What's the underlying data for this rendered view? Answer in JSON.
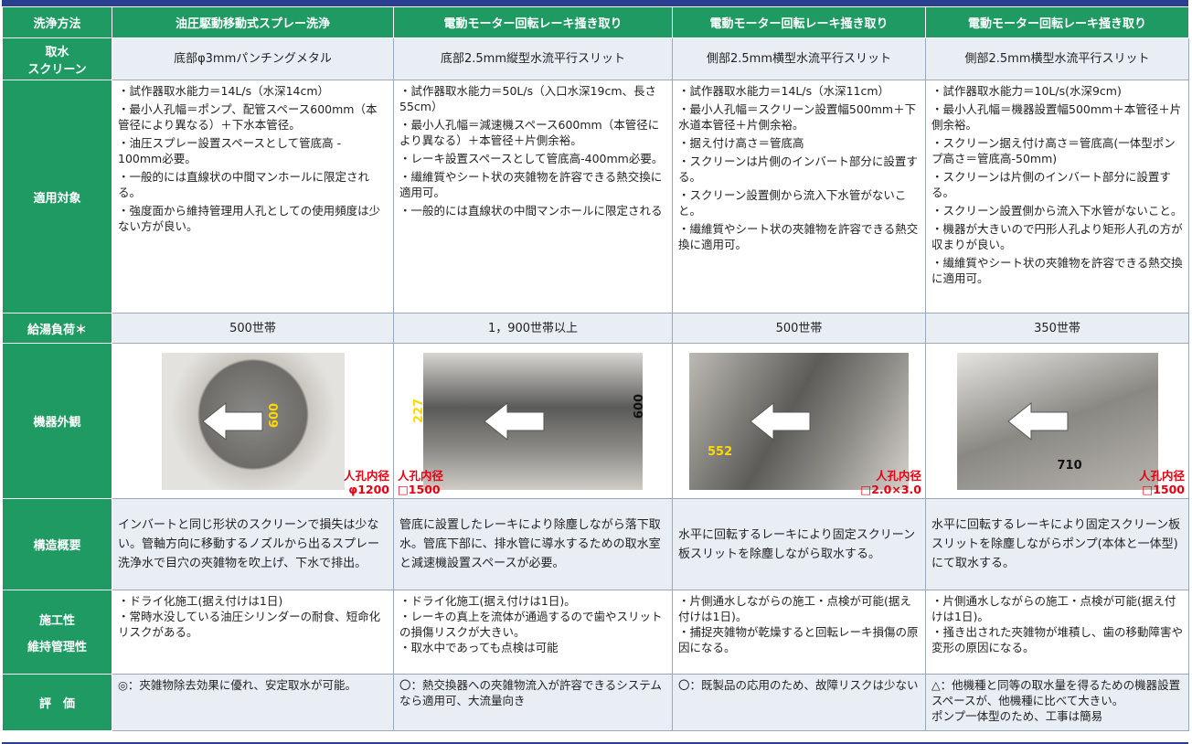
{
  "header": [
    "洗浄方法",
    "油圧駆動移動式スプレー洗浄",
    "電動モーター回転レーキ掻き取り",
    "電動モーター回転レーキ掻き取り",
    "電動モーター回転レーキ掻き取り"
  ],
  "rows": [
    {
      "label": [
        "取水",
        "スクリーン"
      ],
      "cells": [
        "底部φ3mmパンチングメタル",
        "底部2.5mm縦型水流平行スリット",
        "側部2.5mm横型水流平行スリット",
        "側部2.5mm横型水流平行スリット"
      ]
    },
    {
      "label": [
        "適用対象"
      ],
      "cells": [
        [
          "・試作器取水能力＝14L/s（水深14cm）",
          "・最小人孔幅＝ポンプ、配管スペース600mm（本管径により異なる）＋下水本管径。",
          "・油圧スプレー設置スペースとして管底高 - 100mm必要。",
          "・一般的には直線状の中間マンホールに限定される。",
          "・強度面から維持管理用人孔としての使用頻度は少ない方が良い。"
        ],
        [
          "・試作器取水能力＝50L/s（入口水深19cm、長さ55cm）",
          "・最小人孔幅＝減速機スペース600mm（本管径により異なる）＋本管径＋片側余裕。",
          "・レーキ設置スペースとして管底高-400mm必要。",
          "・繊維質やシート状の夾雑物を許容できる熱交換に適用可。",
          "・一般的には直線状の中間マンホールに限定される"
        ],
        [
          "・試作器取水能力＝14L/s（水深11cm）",
          "・最小人孔幅＝スクリーン設置幅500mm＋下水道本管径＋片側余裕。",
          "・据え付け高さ＝管底高",
          "・スクリーンは片側のインバート部分に設置する。",
          "・スクリーン設置側から流入下水管がないこと。",
          "・繊維質やシート状の夾雑物を許容できる熱交換に適用可。"
        ],
        [
          "・試作器取水能力＝10L/s(水深9cm)",
          "・最小人孔幅＝機器設置幅500mm＋本管径＋片側余裕。",
          "・スクリーン据え付け高さ＝管底高(一体型ポンプ高さ＝管底高-50mm)",
          "・スクリーンは片側のインバート部分に設置する。",
          "・スクリーン設置側から流入下水管がないこと。",
          "・機器が大きいので円形人孔より矩形人孔の方が収まりが良い。",
          "・繊維質やシート状の夾雑物を許容できる熱交換に適用可。"
        ]
      ]
    },
    {
      "label": [
        "給湯負荷＊"
      ],
      "cells": [
        "500世帯",
        "1，900世帯以上",
        "500世帯",
        "350世帯"
      ]
    },
    {
      "label": [
        "機器外観"
      ],
      "cells": [
        {
          "dims": [
            "600"
          ],
          "label": "人孔内径",
          "size": "φ1200"
        },
        {
          "dims": [
            "227",
            "600"
          ],
          "label": "人孔内径",
          "size": "□1500"
        },
        {
          "dims": [
            "552"
          ],
          "label": "人孔内径",
          "size": "□2.0×3.0"
        },
        {
          "dims": [
            "710"
          ],
          "label": "人孔内径",
          "size": "□1500"
        }
      ]
    },
    {
      "label": [
        "構造概要"
      ],
      "cells": [
        "インバートと同じ形状のスクリーンで損失は少ない。管軸方向に移動するノズルから出るスプレー洗浄水で目穴の夾雑物を吹上げ、下水で排出。",
        "管底に設置したレーキにより除塵しながら落下取水。管底下部に、排水管に導水するための取水室と減速機設置スペースが必要。",
        "水平に回転するレーキにより固定スクリーン板スリットを除塵しながら取水する。",
        "水平に回転するレーキにより固定スクリーン板スリットを除塵しながらポンプ(本体と一体型)にて取水する。"
      ]
    },
    {
      "label": [
        "施工性",
        "維持管理性"
      ],
      "cells": [
        [
          "・ドライ化施工(据え付けは1日)",
          "・常時水没している油圧シリンダーの耐食、短命化リスクがある。"
        ],
        [
          "・ドライ化施工(据え付けは1日)。",
          "・レーキの真上を流体が通過するので歯やスリットの損傷リスクが大きい。",
          "・取水中であっても点検は可能"
        ],
        [
          "・片側通水しながらの施工・点検が可能(据え付けは1日)。",
          "・捕捉夾雑物が乾燥すると回転レーキ損傷の原因になる。"
        ],
        [
          "・片側通水しながらの施工・点検が可能(据え付けは1日)。",
          "・掻き出された夾雑物が堆積し、歯の移動障害や変形の原因になる。"
        ]
      ]
    },
    {
      "label": [
        "評　価"
      ],
      "cells": [
        [
          "◎：夾雑物除去効果に優れ、安定取水が可能。"
        ],
        [
          "〇：熱交換器への夾雑物流入が許容できるシステムなら適用可、大流量向き"
        ],
        [
          "〇：既製品の応用のため、故障リスクは少ない"
        ],
        [
          "△：他機種と同等の取水量を得るための機器設置スペースが、他機種に比べて大きい。",
          "ポンプ一体型のため、工事は簡易"
        ]
      ]
    }
  ]
}
